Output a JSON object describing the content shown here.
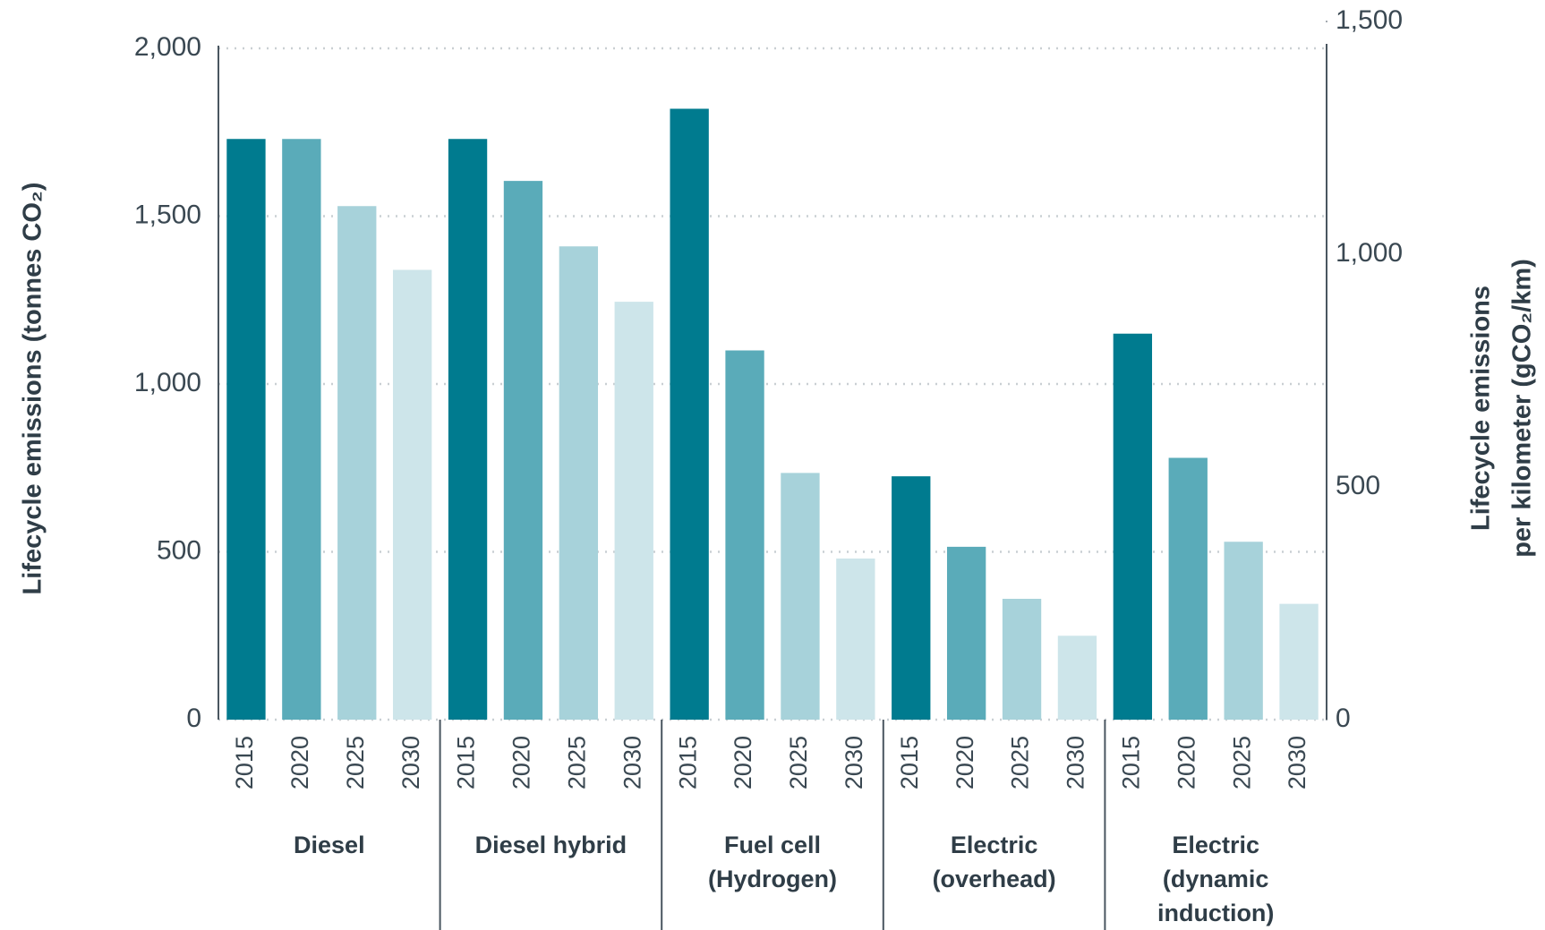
{
  "chart_data": {
    "type": "bar",
    "ylabel": "Lifecycle emissions (tonnes CO₂)",
    "y2label": [
      "Lifecycle  emissions",
      "per kilometer (gCO₂/km)"
    ],
    "categories": [
      "Diesel",
      "Diesel hybrid",
      "Fuel cell\n(Hydrogen)",
      "Electric\n(overhead)",
      "Electric\n(dynamic\ninduction)"
    ],
    "series": [
      {
        "name": "2015",
        "color": "#007b8f",
        "values": [
          1730,
          1730,
          1820,
          725,
          1150
        ]
      },
      {
        "name": "2020",
        "color": "#5aabb9",
        "values": [
          1730,
          1605,
          1100,
          515,
          780
        ]
      },
      {
        "name": "2025",
        "color": "#a7d2da",
        "values": [
          1530,
          1410,
          735,
          360,
          530
        ]
      },
      {
        "name": "2030",
        "color": "#cde5ea",
        "values": [
          1340,
          1245,
          480,
          250,
          345
        ]
      }
    ],
    "ylim": [
      0,
      2000
    ],
    "yticks": [
      0,
      500,
      {
        "value": 1000,
        "label": "1,000"
      },
      {
        "value": 1500,
        "label": "1,500"
      },
      {
        "value": 2000,
        "label": "2,000"
      }
    ],
    "y2lim": [
      0,
      1500
    ],
    "y2ticks": [
      0,
      500,
      {
        "value": 1000,
        "label": "1,000"
      },
      {
        "value": 1500,
        "label": "1,500"
      }
    ],
    "grid": true
  }
}
